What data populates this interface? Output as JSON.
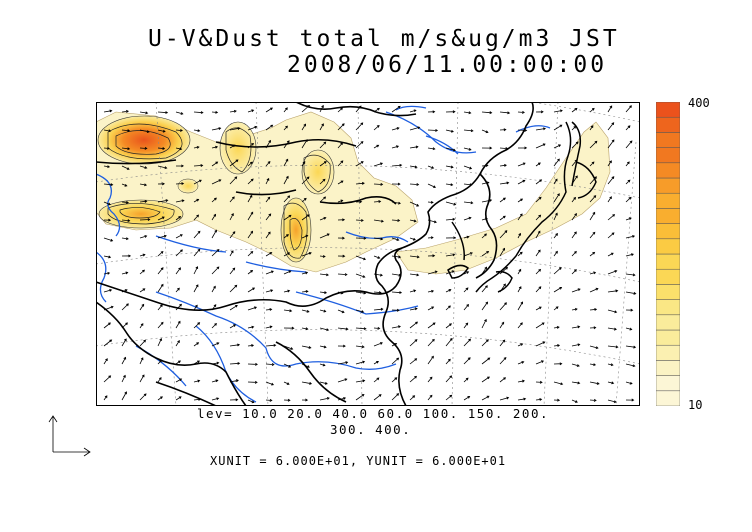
{
  "title_line1": "U-V&Dust total m/s&ug/m3 JST",
  "title_line2": "2008/06/11.00:00:00",
  "colorbar": {
    "max_label": "400",
    "min_label": "10",
    "colors": [
      "#fcf6d6",
      "#fbf3c4",
      "#fbf0b1",
      "#faec9b",
      "#fae785",
      "#fbe06b",
      "#fbd755",
      "#fbcb43",
      "#fabe38",
      "#f9ae2f",
      "#f79c29",
      "#f48a24",
      "#f17820",
      "#ee651d",
      "#eb521c"
    ]
  },
  "contour_levels_line1": "lev= 10.0 20.0 40.0 60.0 100. 150. 200.",
  "contour_levels_line2": "300. 400.",
  "units_text": "XUNIT = 6.000E+01, YUNIT = 6.000E+01",
  "map_style": {
    "coastline_color": "#000000",
    "river_color": "#1f5fe0",
    "dust_low_color": "#fbf3c8",
    "dust_high_color": "#eb5a1c"
  }
}
